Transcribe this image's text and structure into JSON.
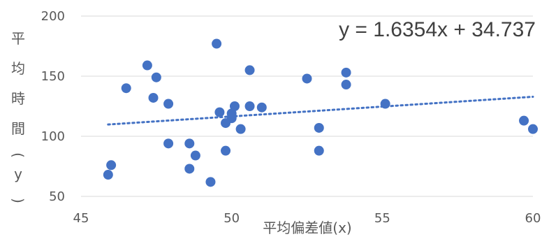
{
  "chart_data": {
    "type": "scatter",
    "xlabel": "平均偏差値(x)",
    "ylabel": "平均時間(y)",
    "xlim": [
      45,
      60
    ],
    "ylim": [
      50,
      200
    ],
    "x_ticks": [
      "45",
      "50",
      "55",
      "60"
    ],
    "y_ticks": [
      "50",
      "100",
      "150",
      "200"
    ],
    "grid": "horizontal",
    "marker_color": "#4472C4",
    "trendline": {
      "type": "linear",
      "style": "dotted",
      "slope": 1.6354,
      "intercept": 34.737,
      "equation": "y = 1.6354x + 34.737"
    },
    "points": [
      {
        "x": 45.9,
        "y": 68
      },
      {
        "x": 46.0,
        "y": 76
      },
      {
        "x": 46.5,
        "y": 140
      },
      {
        "x": 47.2,
        "y": 159
      },
      {
        "x": 47.5,
        "y": 149
      },
      {
        "x": 47.4,
        "y": 132
      },
      {
        "x": 47.9,
        "y": 127
      },
      {
        "x": 47.9,
        "y": 94
      },
      {
        "x": 48.6,
        "y": 73
      },
      {
        "x": 48.6,
        "y": 94
      },
      {
        "x": 48.8,
        "y": 84
      },
      {
        "x": 49.3,
        "y": 62
      },
      {
        "x": 49.5,
        "y": 177
      },
      {
        "x": 49.6,
        "y": 120
      },
      {
        "x": 49.8,
        "y": 111
      },
      {
        "x": 49.8,
        "y": 88
      },
      {
        "x": 50.0,
        "y": 115
      },
      {
        "x": 50.0,
        "y": 119
      },
      {
        "x": 50.1,
        "y": 125
      },
      {
        "x": 50.3,
        "y": 106
      },
      {
        "x": 50.6,
        "y": 155
      },
      {
        "x": 50.6,
        "y": 125
      },
      {
        "x": 51.0,
        "y": 124
      },
      {
        "x": 52.5,
        "y": 148
      },
      {
        "x": 52.9,
        "y": 107
      },
      {
        "x": 52.9,
        "y": 88
      },
      {
        "x": 53.8,
        "y": 153
      },
      {
        "x": 53.8,
        "y": 143
      },
      {
        "x": 55.1,
        "y": 127
      },
      {
        "x": 59.7,
        "y": 113
      },
      {
        "x": 60.0,
        "y": 106
      }
    ]
  }
}
